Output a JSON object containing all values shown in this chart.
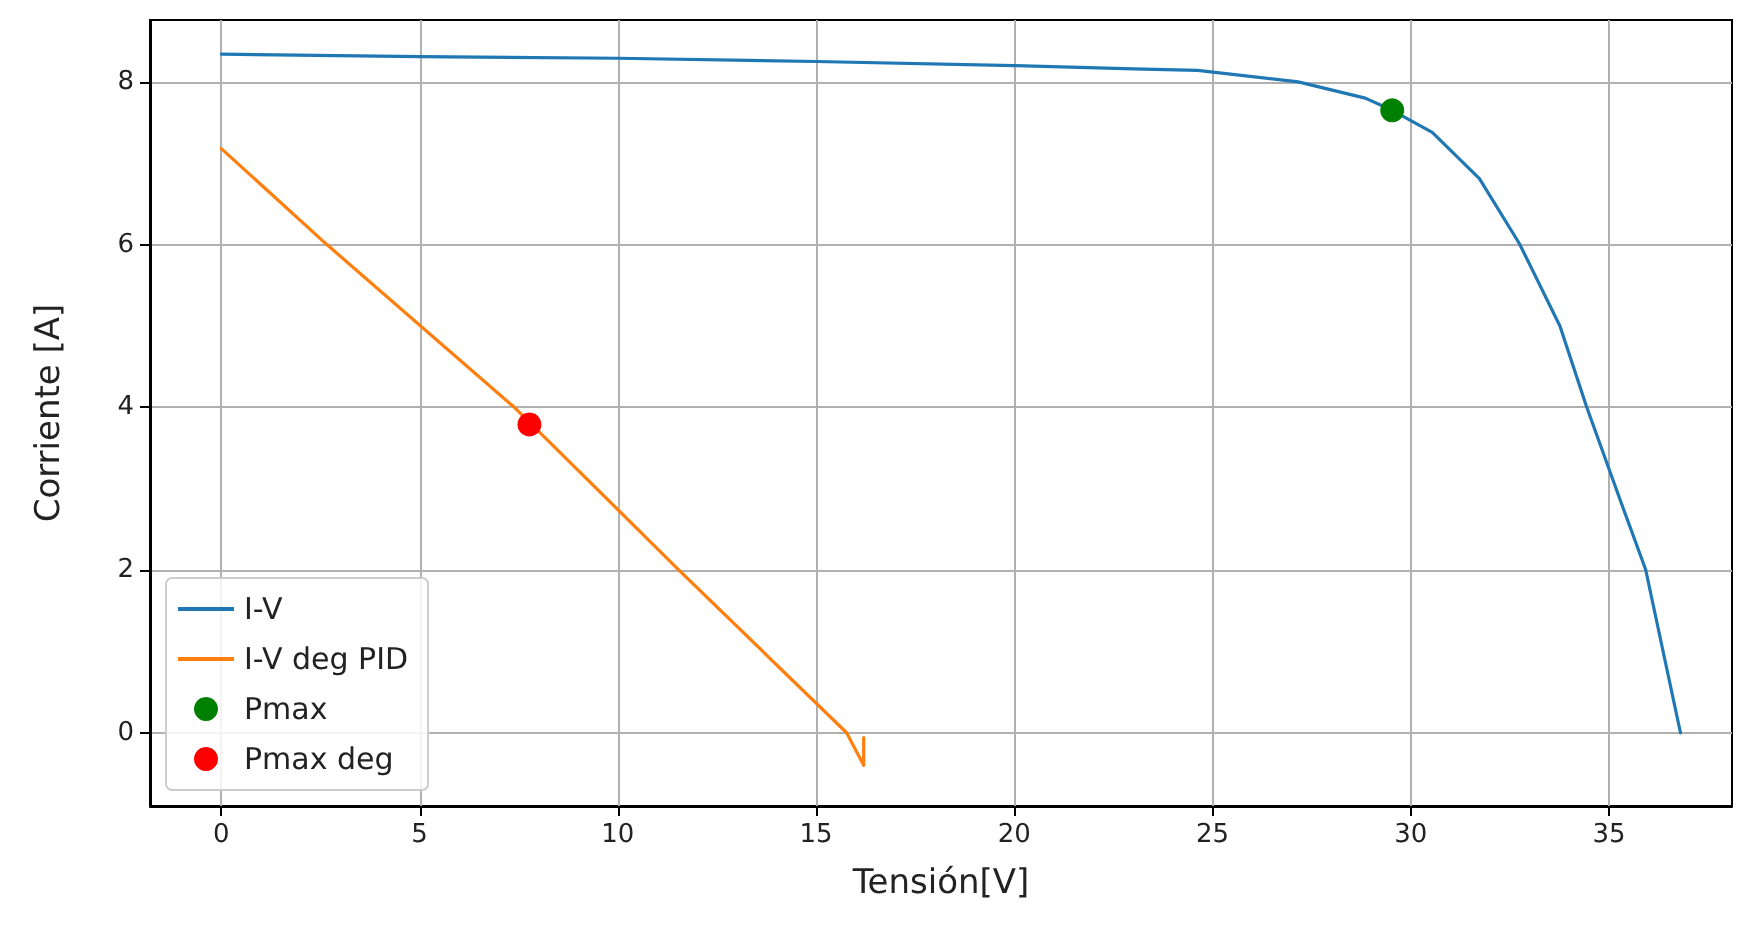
{
  "chart_data": {
    "type": "line",
    "xlabel": "Tensión[V]",
    "ylabel": "Corriente [A]",
    "xlim": [
      -1.8,
      38.1
    ],
    "ylim": [
      -0.9,
      8.76
    ],
    "xticks": [
      0,
      5,
      10,
      15,
      20,
      25,
      30,
      35
    ],
    "yticks": [
      0,
      2,
      4,
      6,
      8
    ],
    "grid": true,
    "legend": "bottom left",
    "series": [
      {
        "name": "I-V",
        "marker": "none",
        "color": "#1f77b4",
        "x": [
          0,
          5,
          10,
          15,
          20,
          23,
          24.62,
          27.16,
          28.85,
          29.53,
          30.54,
          31.73,
          32.74,
          33.76,
          34.43,
          35.28,
          35.92,
          36.8
        ],
        "values": [
          8.34,
          8.31,
          8.29,
          8.25,
          8.2,
          8.16,
          8.14,
          8.0,
          7.8,
          7.65,
          7.38,
          6.81,
          6.01,
          5.0,
          4.01,
          2.86,
          2.01,
          0
        ]
      },
      {
        "name": "I-V deg PID",
        "marker": "none",
        "color": "#ff7f0e",
        "x": [
          0,
          2.66,
          7.39,
          11.54,
          15.77,
          16.2,
          16.2
        ],
        "values": [
          7.18,
          6.0,
          4.0,
          2.0,
          0,
          -0.4,
          -0.06
        ]
      },
      {
        "name": "Pmax",
        "type": "scatter",
        "marker": "circle",
        "color": "#008000",
        "x": [
          29.53
        ],
        "values": [
          7.65
        ]
      },
      {
        "name": "Pmax deg",
        "type": "scatter",
        "marker": "circle",
        "color": "#ff0000",
        "x": [
          7.77
        ],
        "values": [
          3.79
        ]
      }
    ]
  }
}
